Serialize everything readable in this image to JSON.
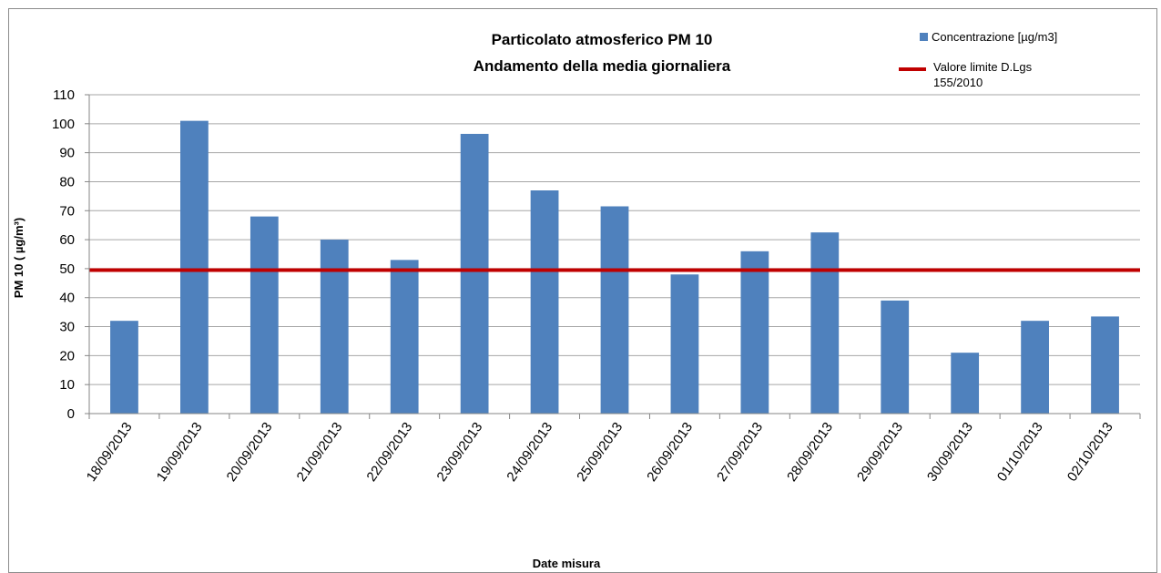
{
  "chart_data": {
    "type": "bar",
    "title_line1": "Particolato atmosferico PM 10",
    "title_line2": "Andamento della media giornaliera",
    "xlabel": "Date misura",
    "ylabel": "PM 10 ( µg/m³)",
    "ylim": [
      0,
      110
    ],
    "yticks": [
      0,
      10,
      20,
      30,
      40,
      50,
      60,
      70,
      80,
      90,
      100,
      110
    ],
    "grid": true,
    "legend_position": "top-right",
    "categories": [
      "18/09/2013",
      "19/09/2013",
      "20/09/2013",
      "21/09/2013",
      "22/09/2013",
      "23/09/2013",
      "24/09/2013",
      "25/09/2013",
      "26/09/2013",
      "27/09/2013",
      "28/09/2013",
      "29/09/2013",
      "30/09/2013",
      "01/10/2013",
      "02/10/2013"
    ],
    "series": [
      {
        "name": "Concentrazione [µg/m3]",
        "type": "bar",
        "color": "#4f81bd",
        "values": [
          32,
          101,
          68,
          60,
          53,
          96.5,
          77,
          71.5,
          48,
          56,
          62.5,
          39,
          21,
          32,
          33.5
        ]
      }
    ],
    "reference_line": {
      "name_line1": "Valore limite D.Lgs",
      "name_line2": "155/2010",
      "value": 49.5,
      "color": "#c00000"
    }
  }
}
